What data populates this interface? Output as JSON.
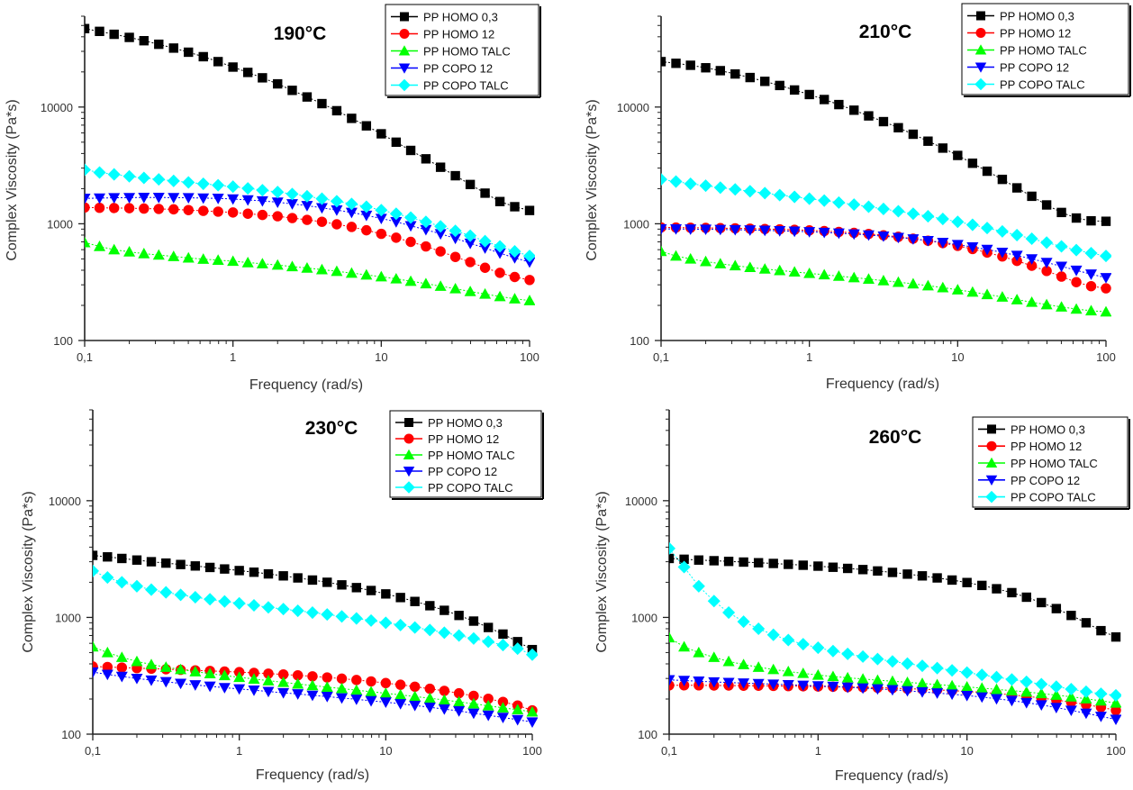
{
  "chart_data": [
    {
      "type": "scatter",
      "title": "190°C",
      "xlabel": "Frequency (rad/s)",
      "ylabel": "Complex Viscosity (Pa*s)",
      "xscale": "log",
      "yscale": "log",
      "xlim": [
        0.1,
        100
      ],
      "ylim": [
        100,
        60000
      ],
      "xticks": [
        {
          "v": 0.1,
          "label": "0,1"
        },
        {
          "v": 1,
          "label": "1"
        },
        {
          "v": 10,
          "label": "10"
        },
        {
          "v": 100,
          "label": "100"
        }
      ],
      "yticks": [
        {
          "v": 100,
          "label": "100"
        },
        {
          "v": 1000,
          "label": "1000"
        },
        {
          "v": 10000,
          "label": "10000"
        }
      ],
      "legend_position": "top-right",
      "x": [
        0.1,
        0.126,
        0.158,
        0.2,
        0.251,
        0.316,
        0.398,
        0.501,
        0.631,
        0.794,
        1,
        1.26,
        1.58,
        2,
        2.51,
        3.16,
        3.98,
        5.01,
        6.31,
        7.94,
        10,
        12.6,
        15.8,
        20,
        25.1,
        31.6,
        39.8,
        50.1,
        63.1,
        79.4,
        100
      ],
      "series": [
        {
          "name": "PP HOMO 0,3",
          "color": "#000000",
          "marker": "square",
          "values": [
            47000,
            44500,
            42000,
            39500,
            37000,
            34500,
            32000,
            29500,
            27000,
            24500,
            22000,
            19800,
            17800,
            15800,
            13900,
            12200,
            10700,
            9300,
            8000,
            6900,
            5900,
            5000,
            4250,
            3600,
            3050,
            2580,
            2170,
            1830,
            1550,
            1400,
            1300
          ]
        },
        {
          "name": "PP HOMO 12",
          "color": "#ff0000",
          "marker": "circle",
          "values": [
            1380,
            1370,
            1365,
            1360,
            1350,
            1340,
            1330,
            1310,
            1290,
            1270,
            1250,
            1220,
            1190,
            1160,
            1120,
            1080,
            1040,
            990,
            940,
            880,
            820,
            760,
            700,
            640,
            580,
            520,
            470,
            420,
            380,
            350,
            330
          ]
        },
        {
          "name": "PP HOMO TALC",
          "color": "#00ff00",
          "marker": "triangle-up",
          "values": [
            690,
            640,
            600,
            575,
            555,
            540,
            525,
            510,
            498,
            488,
            478,
            465,
            455,
            443,
            430,
            418,
            405,
            392,
            378,
            365,
            352,
            338,
            322,
            307,
            292,
            278,
            263,
            250,
            238,
            228,
            220
          ]
        },
        {
          "name": "PP COPO 12",
          "color": "#0000ff",
          "marker": "triangle-down",
          "values": [
            1650,
            1660,
            1670,
            1675,
            1680,
            1680,
            1675,
            1670,
            1660,
            1650,
            1630,
            1600,
            1570,
            1530,
            1480,
            1430,
            1370,
            1310,
            1250,
            1180,
            1110,
            1040,
            960,
            890,
            820,
            750,
            680,
            620,
            560,
            510,
            470
          ]
        },
        {
          "name": "PP COPO TALC",
          "color": "#00ffff",
          "marker": "diamond",
          "values": [
            2900,
            2750,
            2650,
            2550,
            2470,
            2400,
            2330,
            2260,
            2200,
            2140,
            2080,
            2010,
            1940,
            1870,
            1800,
            1720,
            1640,
            1560,
            1480,
            1400,
            1310,
            1220,
            1130,
            1040,
            950,
            870,
            790,
            710,
            640,
            580,
            530
          ]
        }
      ]
    },
    {
      "type": "scatter",
      "title": "210°C",
      "xlabel": "Frequency (rad/s)",
      "ylabel": "Complex Viscosity (Pa*s)",
      "xscale": "log",
      "yscale": "log",
      "xlim": [
        0.1,
        100
      ],
      "ylim": [
        100,
        60000
      ],
      "xticks": [
        {
          "v": 0.1,
          "label": "0,1"
        },
        {
          "v": 1,
          "label": "1"
        },
        {
          "v": 10,
          "label": "10"
        },
        {
          "v": 100,
          "label": "100"
        }
      ],
      "yticks": [
        {
          "v": 100,
          "label": "100"
        },
        {
          "v": 1000,
          "label": "1000"
        },
        {
          "v": 10000,
          "label": "10000"
        }
      ],
      "legend_position": "top-right",
      "x": [
        0.1,
        0.126,
        0.158,
        0.2,
        0.251,
        0.316,
        0.398,
        0.501,
        0.631,
        0.794,
        1,
        1.26,
        1.58,
        2,
        2.51,
        3.16,
        3.98,
        5.01,
        6.31,
        7.94,
        10,
        12.6,
        15.8,
        20,
        25.1,
        31.6,
        39.8,
        50.1,
        63.1,
        79.4,
        100
      ],
      "series": [
        {
          "name": "PP HOMO 0,3",
          "color": "#000000",
          "marker": "square",
          "values": [
            24500,
            23700,
            22800,
            21700,
            20500,
            19200,
            17900,
            16600,
            15300,
            14000,
            12800,
            11600,
            10500,
            9400,
            8400,
            7500,
            6650,
            5850,
            5100,
            4450,
            3850,
            3300,
            2820,
            2400,
            2030,
            1720,
            1450,
            1250,
            1120,
            1060,
            1050
          ]
        },
        {
          "name": "PP HOMO 12",
          "color": "#ff0000",
          "marker": "circle",
          "values": [
            930,
            928,
            925,
            922,
            918,
            914,
            909,
            903,
            896,
            888,
            878,
            866,
            852,
            836,
            818,
            797,
            773,
            746,
            716,
            683,
            647,
            608,
            567,
            525,
            481,
            437,
            394,
            353,
            316,
            292,
            280
          ]
        },
        {
          "name": "PP HOMO TALC",
          "color": "#00ff00",
          "marker": "triangle-up",
          "values": [
            580,
            530,
            500,
            475,
            455,
            438,
            423,
            410,
            398,
            387,
            376,
            366,
            356,
            346,
            336,
            326,
            316,
            306,
            295,
            284,
            272,
            260,
            248,
            236,
            224,
            213,
            203,
            194,
            186,
            180,
            176
          ]
        },
        {
          "name": "PP COPO 12",
          "color": "#0000ff",
          "marker": "triangle-down",
          "values": [
            905,
            903,
            900,
            897,
            893,
            889,
            884,
            878,
            871,
            863,
            854,
            843,
            831,
            817,
            801,
            783,
            763,
            741,
            717,
            691,
            663,
            633,
            602,
            569,
            535,
            500,
            466,
            432,
            399,
            370,
            345
          ]
        },
        {
          "name": "PP COPO TALC",
          "color": "#00ffff",
          "marker": "diamond",
          "values": [
            2400,
            2300,
            2200,
            2120,
            2040,
            1970,
            1900,
            1830,
            1760,
            1700,
            1640,
            1580,
            1520,
            1460,
            1400,
            1340,
            1280,
            1220,
            1160,
            1100,
            1040,
            980,
            920,
            860,
            800,
            745,
            690,
            640,
            595,
            560,
            530
          ]
        }
      ]
    },
    {
      "type": "scatter",
      "title": "230°C",
      "xlabel": "Frequency (rad/s)",
      "ylabel": "Complex Viscosity (Pa*s)",
      "xscale": "log",
      "yscale": "log",
      "xlim": [
        0.1,
        100
      ],
      "ylim": [
        100,
        60000
      ],
      "xticks": [
        {
          "v": 0.1,
          "label": "0,1"
        },
        {
          "v": 1,
          "label": "1"
        },
        {
          "v": 10,
          "label": "10"
        },
        {
          "v": 100,
          "label": "100"
        }
      ],
      "yticks": [
        {
          "v": 100,
          "label": "100"
        },
        {
          "v": 1000,
          "label": "1000"
        },
        {
          "v": 10000,
          "label": "10000"
        }
      ],
      "legend_position": "top-right",
      "x": [
        0.1,
        0.126,
        0.158,
        0.2,
        0.251,
        0.316,
        0.398,
        0.501,
        0.631,
        0.794,
        1,
        1.26,
        1.58,
        2,
        2.51,
        3.16,
        3.98,
        5.01,
        6.31,
        7.94,
        10,
        12.6,
        15.8,
        20,
        25.1,
        31.6,
        39.8,
        50.1,
        63.1,
        79.4,
        100
      ],
      "series": [
        {
          "name": "PP HOMO 0,3",
          "color": "#000000",
          "marker": "square",
          "values": [
            3400,
            3300,
            3200,
            3100,
            3000,
            2920,
            2840,
            2760,
            2680,
            2600,
            2520,
            2440,
            2360,
            2270,
            2180,
            2090,
            2000,
            1900,
            1800,
            1700,
            1590,
            1480,
            1370,
            1260,
            1150,
            1040,
            930,
            820,
            720,
            620,
            530
          ]
        },
        {
          "name": "PP HOMO 12",
          "color": "#ff0000",
          "marker": "circle",
          "values": [
            380,
            376,
            372,
            368,
            364,
            360,
            356,
            352,
            348,
            344,
            340,
            335,
            330,
            325,
            319,
            313,
            306,
            299,
            291,
            283,
            274,
            265,
            255,
            245,
            235,
            224,
            213,
            201,
            189,
            176,
            160
          ]
        },
        {
          "name": "PP HOMO TALC",
          "color": "#00ff00",
          "marker": "triangle-up",
          "values": [
            560,
            500,
            455,
            420,
            395,
            375,
            358,
            343,
            330,
            318,
            307,
            297,
            287,
            278,
            269,
            261,
            253,
            246,
            238,
            231,
            224,
            217,
            210,
            203,
            196,
            189,
            182,
            175,
            168,
            162,
            155
          ]
        },
        {
          "name": "PP COPO 12",
          "color": "#0000ff",
          "marker": "triangle-down",
          "values": [
            340,
            325,
            312,
            300,
            290,
            281,
            272,
            264,
            257,
            250,
            244,
            238,
            232,
            226,
            221,
            215,
            210,
            204,
            199,
            193,
            188,
            182,
            176,
            170,
            164,
            158,
            151,
            145,
            139,
            133,
            127
          ]
        },
        {
          "name": "PP COPO TALC",
          "color": "#00ffff",
          "marker": "diamond",
          "values": [
            2500,
            2200,
            2000,
            1850,
            1730,
            1640,
            1560,
            1490,
            1430,
            1370,
            1320,
            1270,
            1220,
            1180,
            1140,
            1100,
            1060,
            1020,
            980,
            940,
            900,
            860,
            820,
            780,
            740,
            700,
            660,
            620,
            580,
            540,
            480
          ]
        }
      ]
    },
    {
      "type": "scatter",
      "title": "260°C",
      "xlabel": "Frequency (rad/s)",
      "ylabel": "Complex Viscosity (Pa*s)",
      "xscale": "log",
      "yscale": "log",
      "xlim": [
        0.1,
        100
      ],
      "ylim": [
        100,
        60000
      ],
      "xticks": [
        {
          "v": 0.1,
          "label": "0,1"
        },
        {
          "v": 1,
          "label": "1"
        },
        {
          "v": 10,
          "label": "10"
        },
        {
          "v": 100,
          "label": "100"
        }
      ],
      "yticks": [
        {
          "v": 100,
          "label": "100"
        },
        {
          "v": 1000,
          "label": "1000"
        },
        {
          "v": 10000,
          "label": "10000"
        }
      ],
      "legend_position": "top-right",
      "x": [
        0.1,
        0.126,
        0.158,
        0.2,
        0.251,
        0.316,
        0.398,
        0.501,
        0.631,
        0.794,
        1,
        1.26,
        1.58,
        2,
        2.51,
        3.16,
        3.98,
        5.01,
        6.31,
        7.94,
        10,
        12.6,
        15.8,
        20,
        25.1,
        31.6,
        39.8,
        50.1,
        63.1,
        79.4,
        100
      ],
      "series": [
        {
          "name": "PP HOMO 0,3",
          "color": "#000000",
          "marker": "square",
          "values": [
            3200,
            3150,
            3100,
            3060,
            3020,
            2980,
            2940,
            2900,
            2850,
            2800,
            2750,
            2690,
            2630,
            2570,
            2500,
            2430,
            2350,
            2270,
            2180,
            2090,
            1990,
            1880,
            1760,
            1630,
            1490,
            1340,
            1190,
            1040,
            900,
            770,
            680
          ]
        },
        {
          "name": "PP HOMO 12",
          "color": "#ff0000",
          "marker": "circle",
          "values": [
            262,
            262,
            262,
            261,
            261,
            260,
            260,
            259,
            258,
            257,
            256,
            255,
            253,
            252,
            250,
            248,
            245,
            243,
            240,
            236,
            232,
            228,
            223,
            217,
            211,
            204,
            196,
            188,
            179,
            170,
            160
          ]
        },
        {
          "name": "PP HOMO TALC",
          "color": "#00ff00",
          "marker": "triangle-up",
          "values": [
            670,
            560,
            500,
            455,
            420,
            395,
            375,
            358,
            344,
            332,
            321,
            312,
            304,
            297,
            290,
            284,
            278,
            272,
            266,
            260,
            254,
            248,
            242,
            236,
            230,
            223,
            216,
            209,
            201,
            193,
            185
          ]
        },
        {
          "name": "PP COPO 12",
          "color": "#0000ff",
          "marker": "triangle-down",
          "values": [
            292,
            288,
            284,
            280,
            277,
            274,
            271,
            268,
            265,
            262,
            259,
            256,
            252,
            248,
            244,
            240,
            235,
            230,
            225,
            220,
            214,
            208,
            201,
            194,
            186,
            178,
            169,
            160,
            151,
            142,
            134
          ]
        },
        {
          "name": "PP COPO TALC",
          "color": "#00ffff",
          "marker": "diamond",
          "values": [
            3900,
            2700,
            1850,
            1380,
            1100,
            920,
            800,
            710,
            640,
            590,
            550,
            515,
            487,
            462,
            440,
            420,
            402,
            385,
            368,
            352,
            337,
            322,
            308,
            294,
            281,
            268,
            255,
            243,
            231,
            222,
            215
          ]
        }
      ]
    }
  ]
}
